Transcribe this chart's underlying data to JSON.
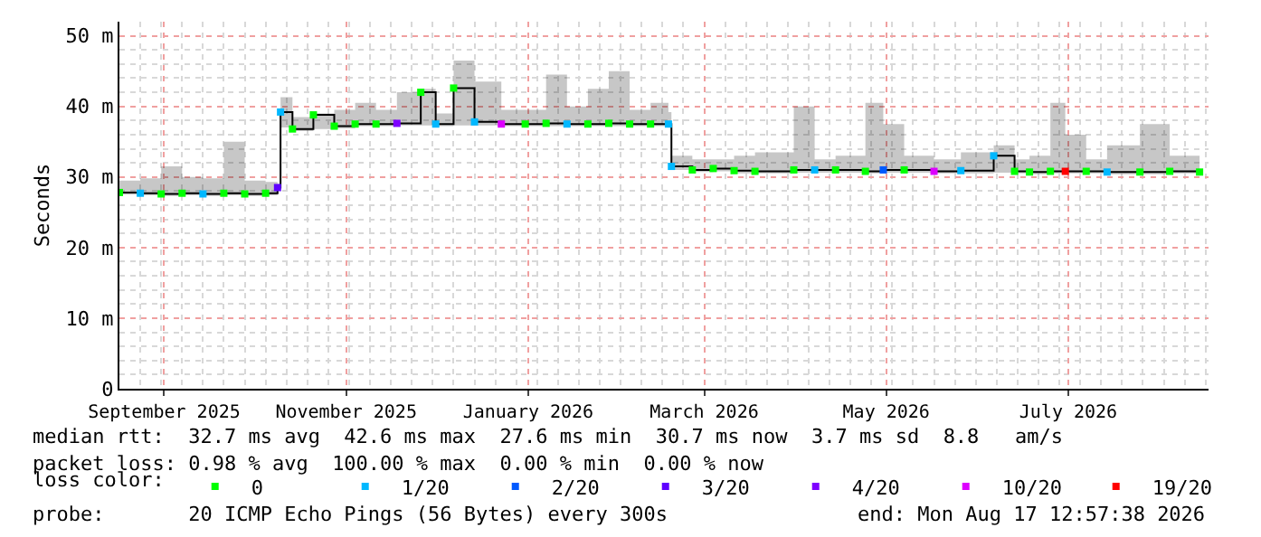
{
  "chart_data": {
    "type": "scatter",
    "ylabel": "Seconds",
    "xlim": [
      "2025-08-17",
      "2026-08-17"
    ],
    "xticks": [
      {
        "value": "2025-09-01",
        "label": "September 2025"
      },
      {
        "value": "2025-11-01",
        "label": "November 2025"
      },
      {
        "value": "2026-01-01",
        "label": "January 2026"
      },
      {
        "value": "2026-03-01",
        "label": "March 2026"
      },
      {
        "value": "2026-05-01",
        "label": "May 2026"
      },
      {
        "value": "2026-07-01",
        "label": "July 2026"
      }
    ],
    "ylim": [
      0,
      52
    ],
    "yticks": [
      0,
      {
        "value": 10,
        "label": "10 m"
      },
      {
        "value": 20,
        "label": "20 m"
      },
      {
        "value": 30,
        "label": "30 m"
      },
      {
        "value": 40,
        "label": "40 m"
      },
      {
        "value": 50,
        "label": "50 m"
      }
    ],
    "grid": true,
    "legend": "bottom",
    "legend_title": "loss color:",
    "annotations": [
      "median rtt:  32.7 ms avg  42.6 ms max  27.6 ms min  30.7 ms now  3.7 ms sd  8.8   am/s",
      "packet loss: 0.98 % avg  100.00 % max  0.00 % min  0.00 % now",
      "probe:       20 ICMP Echo Pings (56 Bytes) every 300s",
      "end: Mon Aug 17 12:57:38 2026"
    ],
    "x": [
      "2025-08-17",
      "2025-08-24",
      "2025-08-31",
      "2025-09-07",
      "2025-09-14",
      "2025-09-21",
      "2025-09-28",
      "2025-10-05",
      "2025-10-09",
      "2025-10-10",
      "2025-10-14",
      "2025-10-21",
      "2025-10-28",
      "2025-11-04",
      "2025-11-11",
      "2025-11-18",
      "2025-11-26",
      "2025-12-01",
      "2025-12-07",
      "2025-12-14",
      "2025-12-23",
      "2025-12-31",
      "2026-01-07",
      "2026-01-14",
      "2026-01-21",
      "2026-01-28",
      "2026-02-04",
      "2026-02-11",
      "2026-02-17",
      "2026-02-18",
      "2026-02-25",
      "2026-03-04",
      "2026-03-11",
      "2026-03-18",
      "2026-03-31",
      "2026-04-07",
      "2026-04-14",
      "2026-04-24",
      "2026-04-30",
      "2026-05-07",
      "2026-05-17",
      "2026-05-26",
      "2026-06-06",
      "2026-06-13",
      "2026-06-18",
      "2026-06-25",
      "2026-06-30",
      "2026-07-07",
      "2026-07-14",
      "2026-07-25",
      "2026-08-04",
      "2026-08-14"
    ],
    "series": [
      {
        "type": "step",
        "color": "#000000",
        "lower": [
          27.5,
          27.4,
          27.3,
          27.4,
          27.3,
          27.4,
          27.3,
          27.4,
          28.2,
          37.0,
          36.5,
          36.8,
          36.9,
          37.2,
          37.2,
          37.3,
          37.3,
          37.2,
          37.3,
          37.3,
          37.2,
          37.2,
          37.2,
          37.2,
          37.2,
          37.2,
          37.2,
          37.2,
          37.2,
          31.0,
          30.7,
          30.8,
          30.5,
          30.5,
          30.6,
          30.6,
          30.6,
          30.5,
          30.6,
          30.6,
          30.5,
          30.5,
          30.6,
          30.5,
          30.4,
          30.5,
          30.5,
          30.5,
          30.4,
          30.4,
          30.5,
          30.4
        ],
        "upper": [
          29.5,
          29.8,
          31.5,
          30.0,
          29.8,
          35.0,
          29.5,
          29.3,
          29.0,
          41.3,
          38.5,
          39.0,
          39.5,
          40.5,
          39.5,
          42.0,
          42.5,
          39.0,
          46.5,
          43.5,
          39.5,
          39.5,
          44.5,
          40.0,
          42.5,
          45.0,
          39.5,
          40.5,
          39.2,
          33.0,
          32.5,
          32.5,
          33.0,
          33.5,
          40.0,
          32.5,
          33.0,
          40.5,
          37.5,
          33.0,
          32.5,
          33.5,
          34.5,
          32.5,
          33.0,
          40.5,
          36.0,
          32.5,
          34.5,
          37.5,
          33.0,
          32.5
        ],
        "values": [
          27.8,
          27.7,
          27.6,
          27.7,
          27.6,
          27.7,
          27.6,
          27.7,
          28.5,
          39.2,
          36.8,
          38.8,
          37.2,
          37.5,
          37.5,
          37.6,
          42.0,
          37.5,
          42.6,
          37.8,
          37.5,
          37.5,
          37.6,
          37.5,
          37.5,
          37.6,
          37.5,
          37.5,
          37.5,
          31.5,
          31.0,
          31.2,
          30.9,
          30.8,
          31.0,
          31.0,
          31.0,
          30.8,
          31.0,
          31.0,
          30.8,
          30.9,
          33.0,
          30.8,
          30.7,
          30.8,
          30.8,
          30.8,
          30.7,
          30.7,
          30.8,
          30.7
        ]
      },
      {
        "marker": "square",
        "name": "0",
        "color": "#00ff00",
        "x": [
          "2025-08-17",
          "2025-08-31",
          "2025-09-07",
          "2025-09-21",
          "2025-09-28",
          "2025-10-05",
          "2025-10-14",
          "2025-10-21",
          "2025-10-28",
          "2025-11-04",
          "2025-11-11",
          "2025-11-26",
          "2025-12-07",
          "2025-12-31",
          "2026-01-07",
          "2026-01-21",
          "2026-01-28",
          "2026-02-04",
          "2026-02-11",
          "2026-02-25",
          "2026-03-04",
          "2026-03-11",
          "2026-03-18",
          "2026-03-31",
          "2026-04-14",
          "2026-04-24",
          "2026-05-07",
          "2026-06-13",
          "2026-06-18",
          "2026-06-25",
          "2026-07-07",
          "2026-07-25",
          "2026-08-04",
          "2026-08-14"
        ],
        "values": [
          27.8,
          27.6,
          27.7,
          27.7,
          27.6,
          27.7,
          36.8,
          38.8,
          37.2,
          37.5,
          37.5,
          42.0,
          42.6,
          37.5,
          37.6,
          37.5,
          37.6,
          37.5,
          37.5,
          31.0,
          31.2,
          30.9,
          30.8,
          31.0,
          31.0,
          30.8,
          31.0,
          30.8,
          30.7,
          30.8,
          30.8,
          30.7,
          30.8,
          30.7
        ]
      },
      {
        "marker": "square",
        "name": "1/20",
        "color": "#00b8ff",
        "x": [
          "2025-08-24",
          "2025-09-14",
          "2025-10-10",
          "2025-12-01",
          "2025-12-14",
          "2026-01-14",
          "2026-02-17",
          "2026-02-18",
          "2026-04-07",
          "2026-05-26",
          "2026-06-06",
          "2026-07-14"
        ],
        "values": [
          27.7,
          27.6,
          39.2,
          37.5,
          37.8,
          37.5,
          37.5,
          31.5,
          31.0,
          30.9,
          33.0,
          30.7
        ]
      },
      {
        "marker": "square",
        "name": "2/20",
        "color": "#0059ff",
        "x": [
          "2026-04-30"
        ],
        "values": [
          31.0
        ]
      },
      {
        "marker": "square",
        "name": "3/20",
        "color": "#5e00ff",
        "x": [
          "2025-10-09"
        ],
        "values": [
          28.5
        ]
      },
      {
        "marker": "square",
        "name": "4/20",
        "color": "#7e00ff",
        "x": [
          "2025-11-18"
        ],
        "values": [
          37.6
        ]
      },
      {
        "marker": "square",
        "name": "10/20",
        "color": "#dd00ff",
        "x": [
          "2025-12-23",
          "2026-05-17"
        ],
        "values": [
          37.5,
          30.8
        ]
      },
      {
        "marker": "square",
        "name": "19/20",
        "color": "#ff0000",
        "x": [
          "2026-06-30"
        ],
        "values": [
          30.8
        ]
      }
    ]
  }
}
